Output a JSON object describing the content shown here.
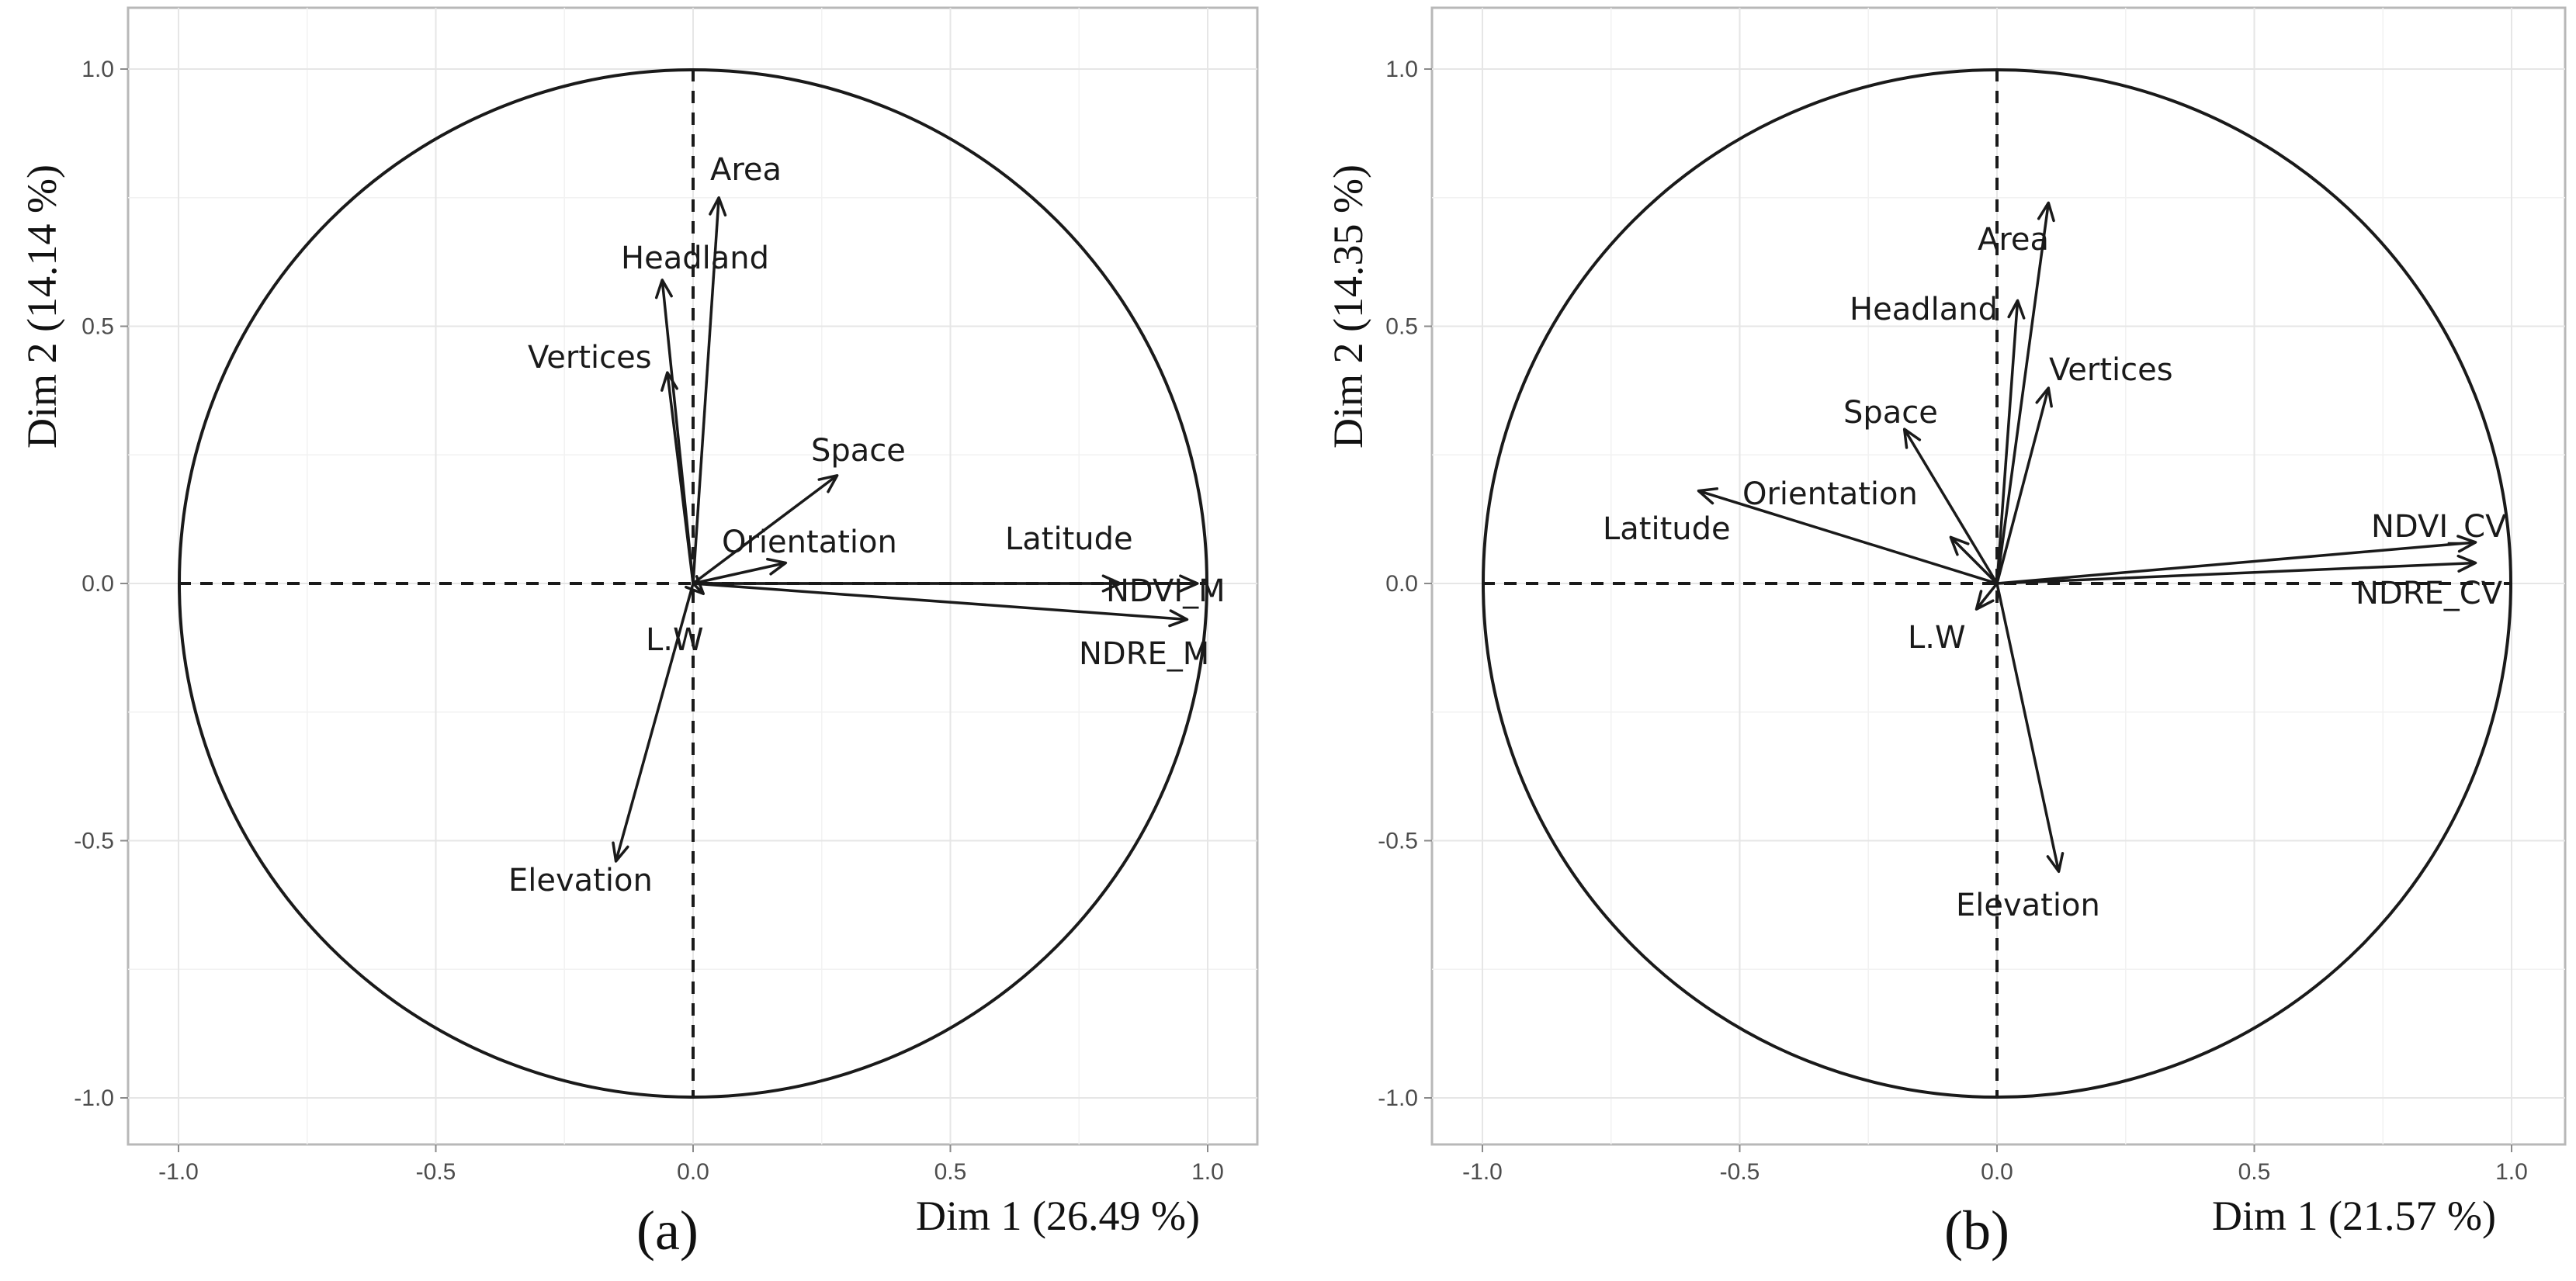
{
  "chart_data": [
    {
      "type": "pca-variable-correlation-circle",
      "tag": "(a)",
      "xlabel": "Dim 1 (26.49 %)",
      "ylabel": "Dim 2 (14.14 %)",
      "xlim": [
        -1.0,
        1.0
      ],
      "ylim": [
        -1.0,
        1.0
      ],
      "x_ticks": [
        "-1.0",
        "-0.5",
        "0.0",
        "0.5",
        "1.0"
      ],
      "y_ticks": [
        "-1.0",
        "-0.5",
        "0.0",
        "0.5",
        "1.0"
      ],
      "grid": true,
      "variables": [
        {
          "name": "Area",
          "x": 0.05,
          "y": 0.75
        },
        {
          "name": "Headland",
          "x": -0.06,
          "y": 0.59
        },
        {
          "name": "Vertices",
          "x": -0.05,
          "y": 0.41
        },
        {
          "name": "Space",
          "x": 0.28,
          "y": 0.21
        },
        {
          "name": "Orientation",
          "x": 0.18,
          "y": 0.04
        },
        {
          "name": "Latitude",
          "x": 0.83,
          "y": 0.0
        },
        {
          "name": "NDVI_M",
          "x": 0.98,
          "y": 0.0
        },
        {
          "name": "NDRE_M",
          "x": 0.96,
          "y": -0.07
        },
        {
          "name": "L.W",
          "x": 0.02,
          "y": -0.02
        },
        {
          "name": "Elevation",
          "x": -0.15,
          "y": -0.54
        }
      ]
    },
    {
      "type": "pca-variable-correlation-circle",
      "tag": "(b)",
      "xlabel": "Dim 1 (21.57 %)",
      "ylabel": "Dim 2 (14.35 %)",
      "xlim": [
        -1.0,
        1.0
      ],
      "ylim": [
        -1.0,
        1.0
      ],
      "x_ticks": [
        "-1.0",
        "-0.5",
        "0.0",
        "0.5",
        "1.0"
      ],
      "y_ticks": [
        "-1.0",
        "-0.5",
        "0.0",
        "0.5",
        "1.0"
      ],
      "grid": true,
      "variables": [
        {
          "name": "Area",
          "x": 0.1,
          "y": 0.74
        },
        {
          "name": "Headland",
          "x": 0.04,
          "y": 0.55
        },
        {
          "name": "Vertices",
          "x": 0.1,
          "y": 0.38
        },
        {
          "name": "Space",
          "x": -0.18,
          "y": 0.3
        },
        {
          "name": "Orientation",
          "x": -0.09,
          "y": 0.09
        },
        {
          "name": "Latitude",
          "x": -0.58,
          "y": 0.18
        },
        {
          "name": "NDVI_CV",
          "x": 0.93,
          "y": 0.08
        },
        {
          "name": "NDRE_CV",
          "x": 0.93,
          "y": 0.04
        },
        {
          "name": "L.W",
          "x": -0.04,
          "y": -0.05
        },
        {
          "name": "Elevation",
          "x": 0.12,
          "y": -0.56
        }
      ]
    }
  ]
}
